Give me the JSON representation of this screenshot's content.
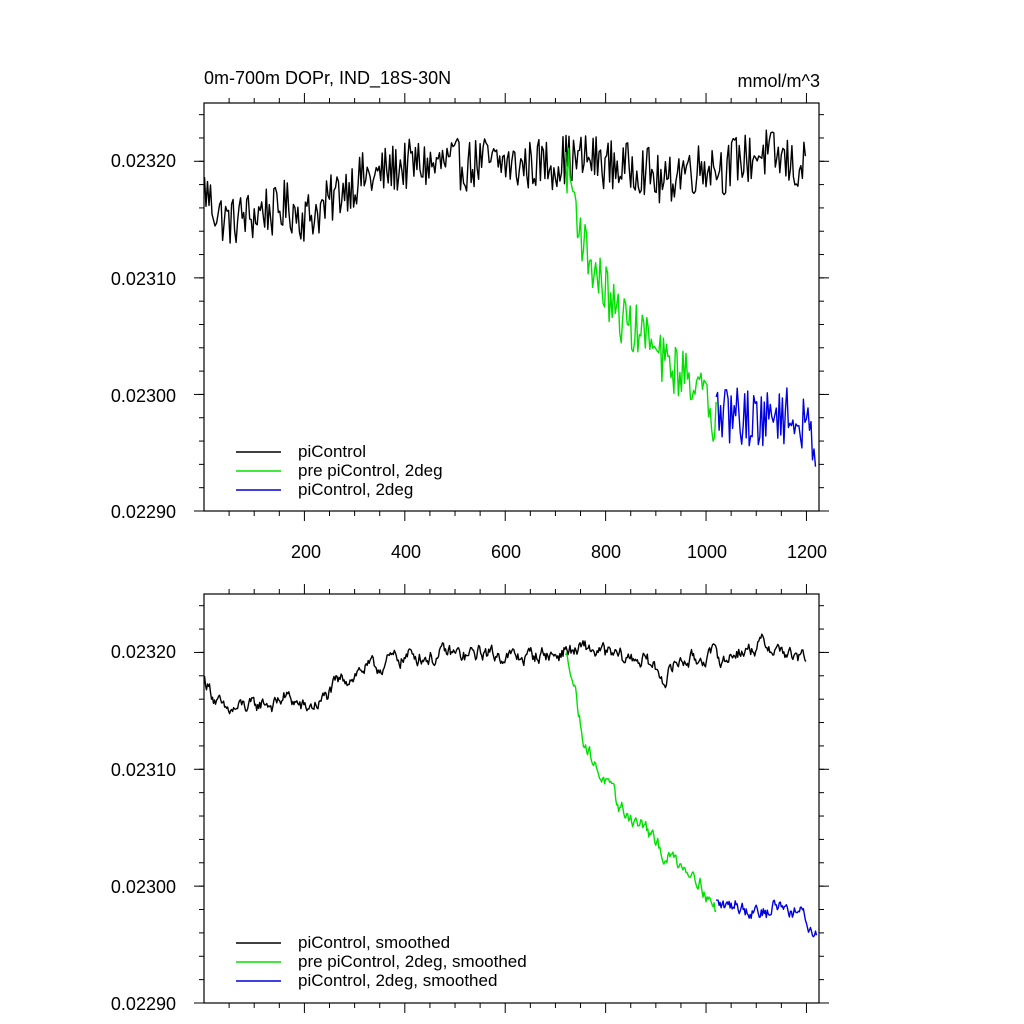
{
  "chart_data": [
    {
      "type": "line",
      "title": "0m-700m DOPr, IND_18S-30N",
      "units": "mmol/m^3",
      "xlim": [
        0,
        1225
      ],
      "ylim": [
        0.0229,
        0.02325
      ],
      "xticks": [
        200,
        400,
        600,
        800,
        1000,
        1200
      ],
      "xtick_labels": [
        "200",
        "400",
        "600",
        "800",
        "1000",
        "1200"
      ],
      "yticks": [
        0.0229,
        0.023,
        0.0231,
        0.0232
      ],
      "ytick_labels": [
        "0.02290",
        "0.02300",
        "0.02310",
        "0.02320"
      ],
      "legend_position": "bottom-left",
      "series": [
        {
          "name": "piControl",
          "color": "#000000",
          "x": [
            1,
            20,
            40,
            60,
            80,
            100,
            120,
            140,
            160,
            180,
            200,
            220,
            240,
            260,
            280,
            300,
            320,
            340,
            360,
            380,
            400,
            420,
            440,
            460,
            480,
            500,
            520,
            540,
            560,
            580,
            600,
            620,
            640,
            660,
            680,
            700,
            720,
            740,
            760,
            780,
            800,
            820,
            840,
            860,
            880,
            900,
            920,
            940,
            960,
            980,
            1000,
            1020,
            1040,
            1060,
            1080,
            1100,
            1120,
            1140,
            1160,
            1180,
            1200
          ],
          "y": [
            0.023177,
            0.02316,
            0.02315,
            0.023148,
            0.023154,
            0.023152,
            0.02316,
            0.023155,
            0.023162,
            0.023158,
            0.023152,
            0.023156,
            0.02316,
            0.02317,
            0.023178,
            0.023182,
            0.023187,
            0.023185,
            0.023191,
            0.023194,
            0.023196,
            0.023198,
            0.023197,
            0.023195,
            0.023199,
            0.023198,
            0.023196,
            0.023198,
            0.023201,
            0.023197,
            0.023199,
            0.023195,
            0.023196,
            0.023198,
            0.023199,
            0.023197,
            0.023203,
            0.0232,
            0.023203,
            0.023201,
            0.023198,
            0.023196,
            0.023194,
            0.023196,
            0.023193,
            0.023185,
            0.023178,
            0.023191,
            0.023195,
            0.023193,
            0.023198,
            0.023197,
            0.023192,
            0.023203,
            0.023201,
            0.023206,
            0.023207,
            0.023203,
            0.0232,
            0.023193,
            0.023196
          ],
          "noise": 2.2e-05
        },
        {
          "name": "pre piControl, 2deg",
          "color": "#00e000",
          "x": [
            720,
            730,
            740,
            750,
            760,
            770,
            780,
            800,
            820,
            840,
            860,
            880,
            900,
            920,
            940,
            960,
            980,
            1000,
            1020
          ],
          "y": [
            0.023198,
            0.023185,
            0.023165,
            0.02314,
            0.023125,
            0.023115,
            0.023102,
            0.02309,
            0.02307,
            0.023063,
            0.023055,
            0.023052,
            0.023034,
            0.023026,
            0.023021,
            0.023017,
            0.023013,
            0.022992,
            0.022975
          ],
          "noise": 2.2e-05
        },
        {
          "name": "piControl, 2deg",
          "color": "#0000e0",
          "x": [
            1020,
            1040,
            1060,
            1080,
            1100,
            1120,
            1140,
            1160,
            1180,
            1200,
            1210,
            1220
          ],
          "y": [
            0.022986,
            0.02298,
            0.022985,
            0.022979,
            0.022982,
            0.022976,
            0.022986,
            0.022981,
            0.022977,
            0.02297,
            0.022962,
            0.022958
          ],
          "noise": 2.5e-05
        }
      ]
    },
    {
      "type": "line",
      "title": "",
      "xlim": [
        0,
        1225
      ],
      "ylim": [
        0.0229,
        0.02325
      ],
      "xticks": [
        200,
        400,
        600,
        800,
        1000,
        1200
      ],
      "yticks": [
        0.0229,
        0.023,
        0.0231,
        0.0232
      ],
      "ytick_labels": [
        "0.02290",
        "0.02300",
        "0.02310",
        "0.02320"
      ],
      "legend_position": "bottom-left",
      "series": [
        {
          "name": "piControl, smoothed",
          "color": "#000000",
          "x": [
            1,
            20,
            40,
            60,
            80,
            100,
            120,
            140,
            160,
            180,
            200,
            220,
            240,
            260,
            280,
            300,
            320,
            340,
            360,
            380,
            400,
            420,
            440,
            460,
            480,
            500,
            520,
            540,
            560,
            580,
            600,
            620,
            640,
            660,
            680,
            700,
            720,
            740,
            760,
            780,
            800,
            820,
            840,
            860,
            880,
            900,
            920,
            940,
            960,
            980,
            1000,
            1020,
            1040,
            1060,
            1080,
            1100,
            1120,
            1140,
            1160,
            1180,
            1200
          ],
          "y": [
            0.023177,
            0.023163,
            0.023148,
            0.02315,
            0.023154,
            0.023152,
            0.023158,
            0.023155,
            0.023162,
            0.023158,
            0.023151,
            0.023155,
            0.02316,
            0.02317,
            0.023178,
            0.023182,
            0.023187,
            0.023185,
            0.023191,
            0.023194,
            0.023196,
            0.023198,
            0.023197,
            0.023195,
            0.023199,
            0.023198,
            0.023196,
            0.023198,
            0.023201,
            0.023197,
            0.023199,
            0.023195,
            0.023196,
            0.023198,
            0.023199,
            0.023197,
            0.023203,
            0.0232,
            0.023203,
            0.023201,
            0.023198,
            0.023196,
            0.023194,
            0.023196,
            0.023193,
            0.023185,
            0.023178,
            0.023191,
            0.023195,
            0.023193,
            0.023198,
            0.023197,
            0.023192,
            0.023203,
            0.023201,
            0.023206,
            0.023207,
            0.023203,
            0.0232,
            0.023193,
            0.023196
          ],
          "noise": 6e-06
        },
        {
          "name": "pre piControl, 2deg, smoothed",
          "color": "#00e000",
          "x": [
            720,
            730,
            740,
            750,
            760,
            770,
            780,
            800,
            820,
            840,
            860,
            880,
            900,
            920,
            940,
            960,
            980,
            1000,
            1020
          ],
          "y": [
            0.023195,
            0.02319,
            0.023168,
            0.023138,
            0.023123,
            0.023113,
            0.023102,
            0.02309,
            0.02307,
            0.023063,
            0.023055,
            0.02305,
            0.023034,
            0.023026,
            0.023022,
            0.023017,
            0.023012,
            0.022994,
            0.022978
          ],
          "noise": 6e-06
        },
        {
          "name": "piControl, 2deg, smoothed",
          "color": "#0000e0",
          "x": [
            1020,
            1040,
            1060,
            1080,
            1100,
            1120,
            1140,
            1160,
            1180,
            1200,
            1210,
            1220
          ],
          "y": [
            0.022985,
            0.022981,
            0.022986,
            0.02298,
            0.022983,
            0.022977,
            0.022985,
            0.022982,
            0.022978,
            0.022972,
            0.02296,
            0.022962
          ],
          "noise": 6e-06
        }
      ]
    }
  ]
}
